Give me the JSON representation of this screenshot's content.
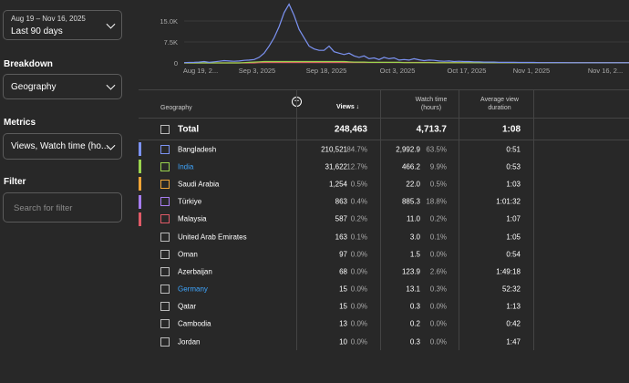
{
  "sidebar": {
    "date_range": "Aug 19 – Nov 16, 2025",
    "date_label": "Last 90 days",
    "breakdown_title": "Breakdown",
    "breakdown_value": "Geography",
    "metrics_title": "Metrics",
    "metrics_value": "Views, Watch time (ho...",
    "filter_title": "Filter",
    "filter_placeholder": "Search for filter"
  },
  "chart_data": {
    "type": "line",
    "y_ticks": [
      "15.0K",
      "7.5K",
      "0"
    ],
    "x_ticks": [
      "Aug 19, 2...",
      "Sep 3, 2025",
      "Sep 18, 2025",
      "Oct 3, 2025",
      "Oct 17, 2025",
      "Nov 1, 2025",
      "Nov 16, 2..."
    ],
    "ylim": [
      0,
      22500
    ],
    "series": [
      {
        "color": "#7c93f3",
        "values": [
          100,
          150,
          200,
          300,
          500,
          200,
          400,
          600,
          800,
          700,
          600,
          700,
          900,
          1000,
          1200,
          2000,
          3500,
          6000,
          9000,
          13000,
          18000,
          21000,
          17000,
          12000,
          9000,
          6000,
          5000,
          4500,
          4500,
          6000,
          4000,
          3500,
          3000,
          3500,
          2500,
          2000,
          2500,
          1500,
          1800,
          1200,
          2000,
          1500,
          1800,
          1000,
          1200,
          1000,
          1500,
          1100,
          800,
          1000,
          900,
          700,
          600,
          700,
          500,
          600,
          500,
          500,
          400,
          400,
          300,
          300,
          300,
          200,
          200,
          200,
          200,
          150,
          150,
          150,
          150,
          100,
          100,
          100,
          100,
          100,
          100,
          80,
          80,
          80,
          80,
          80,
          80,
          80,
          80,
          70,
          70,
          70,
          60,
          60
        ]
      },
      {
        "color": "#9ad34e",
        "values": [
          0,
          0,
          0,
          0,
          0,
          0,
          0,
          0,
          0,
          0,
          0,
          0,
          100,
          200,
          300,
          400,
          500,
          500,
          500,
          500,
          500,
          500,
          500,
          500,
          500,
          500,
          500,
          500,
          500,
          500,
          500,
          500,
          500,
          400,
          300,
          300,
          300,
          200,
          200,
          200,
          200,
          200,
          200,
          200,
          100,
          100,
          100,
          100,
          100,
          100,
          50,
          50,
          50,
          50,
          50,
          50,
          50,
          50,
          50,
          50,
          50,
          50,
          50,
          50,
          50,
          50,
          50,
          50,
          50,
          50,
          50,
          50,
          50,
          50,
          50,
          50,
          50,
          50,
          50,
          50,
          50,
          50,
          50,
          50,
          50,
          50,
          50,
          50,
          50,
          50
        ]
      },
      {
        "color": "#e05a67",
        "values": [
          0,
          0,
          0,
          0,
          0,
          0,
          0,
          0,
          0,
          0,
          0,
          0,
          0,
          0,
          0,
          100,
          150,
          150,
          150,
          150,
          150,
          150,
          150,
          150,
          150,
          150,
          150,
          150,
          150,
          150,
          150,
          150,
          150,
          150,
          150,
          150,
          150,
          150,
          150,
          150,
          150,
          150,
          150,
          150,
          150,
          150,
          150,
          150,
          150,
          150,
          100,
          100,
          100,
          100,
          100,
          100,
          100,
          100,
          100,
          100,
          100,
          100,
          100,
          100,
          100,
          100,
          100,
          100,
          100,
          100,
          100,
          100,
          100,
          100,
          100,
          100,
          100,
          100,
          100,
          100,
          100,
          100,
          100,
          100,
          100,
          100,
          100,
          100,
          100,
          100
        ]
      }
    ]
  },
  "table": {
    "headers": {
      "dimension": "Geography",
      "views": "Views",
      "watch_time": "Watch time",
      "watch_time_unit": "(hours)",
      "avg_view": "Average view",
      "avg_view_2": "duration"
    },
    "total": {
      "label": "Total",
      "views": "248,463",
      "watch": "4,713.7",
      "avg": "1:08"
    },
    "rows": [
      {
        "name": "Bangladesh",
        "color": "#7c93f3",
        "link": false,
        "views": "210,521",
        "vpct": "84.7%",
        "watch": "2,992.9",
        "wpct": "63.5%",
        "avg": "0:51"
      },
      {
        "name": "India",
        "color": "#9ad34e",
        "link": true,
        "views": "31,622",
        "vpct": "12.7%",
        "watch": "466.2",
        "wpct": "9.9%",
        "avg": "0:53"
      },
      {
        "name": "Saudi Arabia",
        "color": "#f0a537",
        "link": false,
        "views": "1,254",
        "vpct": "0.5%",
        "watch": "22.0",
        "wpct": "0.5%",
        "avg": "1:03"
      },
      {
        "name": "Türkiye",
        "color": "#a77df0",
        "link": false,
        "views": "863",
        "vpct": "0.4%",
        "watch": "885.3",
        "wpct": "18.8%",
        "avg": "1:01:32"
      },
      {
        "name": "Malaysia",
        "color": "#e05a67",
        "link": false,
        "views": "587",
        "vpct": "0.2%",
        "watch": "11.0",
        "wpct": "0.2%",
        "avg": "1:07"
      },
      {
        "name": "United Arab Emirates",
        "color": "",
        "link": false,
        "views": "163",
        "vpct": "0.1%",
        "watch": "3.0",
        "wpct": "0.1%",
        "avg": "1:05"
      },
      {
        "name": "Oman",
        "color": "",
        "link": false,
        "views": "97",
        "vpct": "0.0%",
        "watch": "1.5",
        "wpct": "0.0%",
        "avg": "0:54"
      },
      {
        "name": "Azerbaijan",
        "color": "",
        "link": false,
        "views": "68",
        "vpct": "0.0%",
        "watch": "123.9",
        "wpct": "2.6%",
        "avg": "1:49:18"
      },
      {
        "name": "Germany",
        "color": "",
        "link": true,
        "views": "15",
        "vpct": "0.0%",
        "watch": "13.1",
        "wpct": "0.3%",
        "avg": "52:32"
      },
      {
        "name": "Qatar",
        "color": "",
        "link": false,
        "views": "15",
        "vpct": "0.0%",
        "watch": "0.3",
        "wpct": "0.0%",
        "avg": "1:13"
      },
      {
        "name": "Cambodia",
        "color": "",
        "link": false,
        "views": "13",
        "vpct": "0.0%",
        "watch": "0.2",
        "wpct": "0.0%",
        "avg": "0:42"
      },
      {
        "name": "Jordan",
        "color": "",
        "link": false,
        "views": "10",
        "vpct": "0.0%",
        "watch": "0.3",
        "wpct": "0.0%",
        "avg": "1:47"
      }
    ]
  }
}
